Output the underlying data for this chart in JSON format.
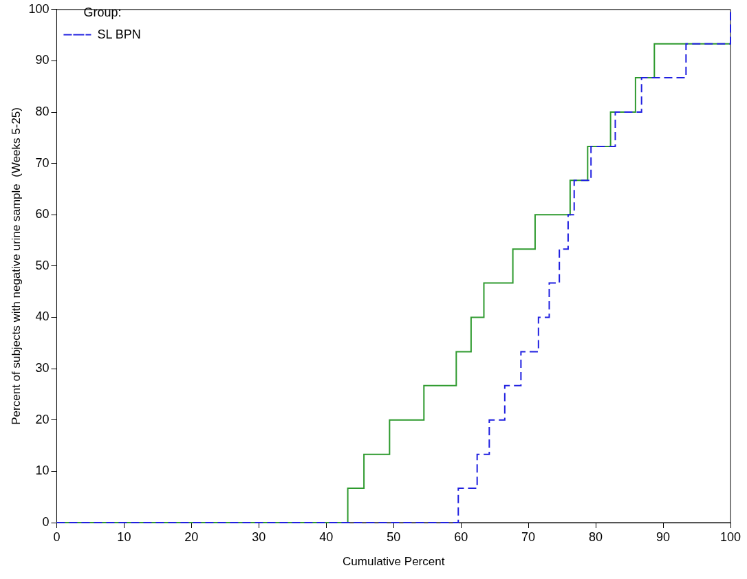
{
  "chart_data": {
    "type": "step",
    "xlabel": "Cumulative Percent",
    "ylabel": "Percent of subjects with negative urine sample  (Weeks 5-25)",
    "legend_title": "Group:",
    "legend": "top left",
    "grid": false,
    "marker": "none",
    "xlim": [
      0,
      100
    ],
    "xticks": [
      0,
      10,
      20,
      30,
      40,
      50,
      60,
      70,
      80,
      90,
      100
    ],
    "ylim": [
      0,
      100
    ],
    "yticks": [
      0,
      10,
      20,
      30,
      40,
      50,
      60,
      70,
      80,
      90,
      100
    ],
    "series": [
      {
        "color": "#2e9a2e",
        "line_style": "solid",
        "x": [
          0,
          43.2,
          45.6,
          49.4,
          54.5,
          59.3,
          61.5,
          63.4,
          67.7,
          71.0,
          76.2,
          78.8,
          82.2,
          85.9,
          88.7,
          100
        ],
        "values": [
          0,
          6.7,
          13.3,
          20,
          26.7,
          33.3,
          40,
          46.7,
          53.3,
          60,
          66.7,
          73.3,
          80,
          86.7,
          93.3,
          93.3
        ]
      },
      {
        "name": "SL BPN",
        "color": "#1f1fe0",
        "line_style": "dashed",
        "x": [
          0,
          59.6,
          62.4,
          64.2,
          66.5,
          68.9,
          71.5,
          73.1,
          74.6,
          75.9,
          76.8,
          79.3,
          82.9,
          86.8,
          93.4,
          100
        ],
        "values": [
          0,
          6.7,
          13.3,
          20,
          26.7,
          33.3,
          40,
          46.7,
          53.3,
          60,
          66.7,
          73.3,
          80,
          86.7,
          93.3,
          100
        ]
      }
    ]
  }
}
